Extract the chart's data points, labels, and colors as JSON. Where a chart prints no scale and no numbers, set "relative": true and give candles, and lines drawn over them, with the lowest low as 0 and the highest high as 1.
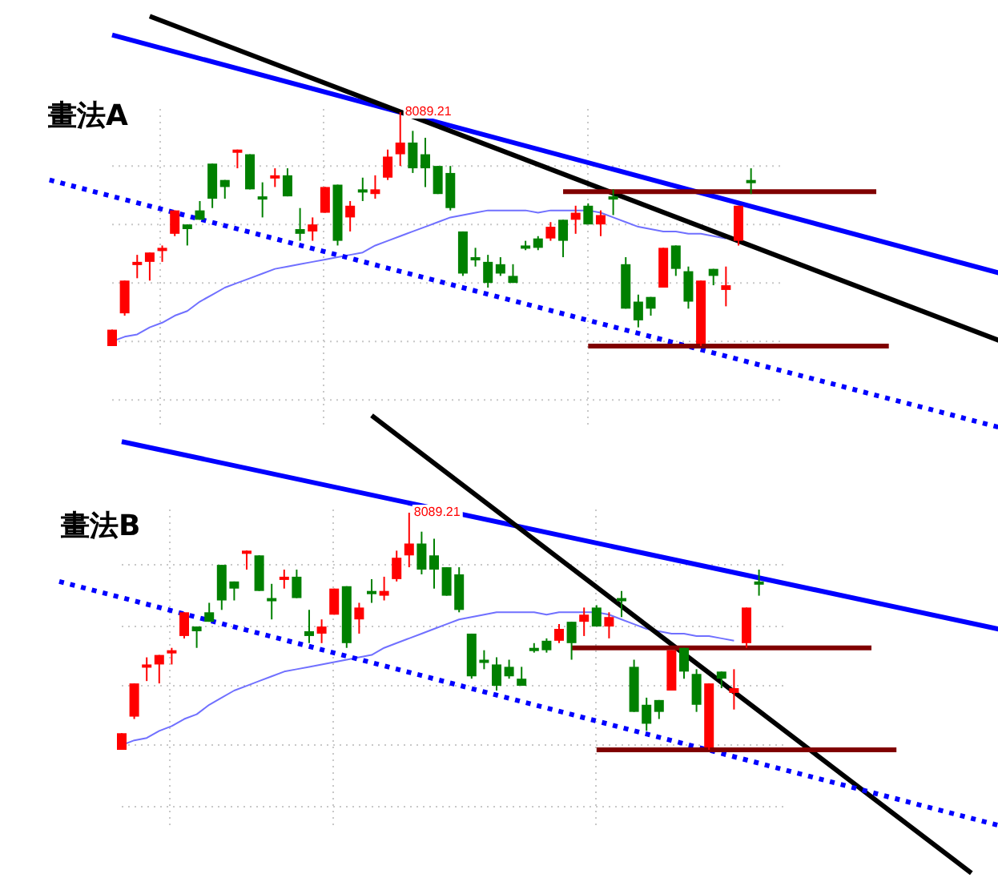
{
  "chart_data": [
    {
      "type": "candlestick",
      "title": "畫法A",
      "relative": true,
      "grid": "x",
      "ref_lines": [
        {
          "axis": "y",
          "value": 0.77,
          "color": "#c8c8c8",
          "line_style": "dotted"
        },
        {
          "axis": "y",
          "value": 0.52,
          "color": "#c8c8c8",
          "line_style": "dotted"
        },
        {
          "axis": "y",
          "value": 0.27,
          "color": "#c8c8c8",
          "line_style": "dotted"
        },
        {
          "axis": "y",
          "value": 0.02,
          "color": "#c8c8c8",
          "line_style": "dotted"
        },
        {
          "axis": "y",
          "value": -0.23,
          "color": "#c8c8c8",
          "line_style": "dotted"
        }
      ],
      "categories": [
        null,
        null,
        null,
        null,
        null,
        null,
        null,
        null,
        null,
        null,
        null,
        null,
        null,
        null,
        null,
        null,
        null,
        null,
        null,
        null,
        null,
        null,
        null,
        null,
        null,
        null,
        null,
        null,
        null,
        null,
        null,
        null,
        null,
        null,
        null,
        null,
        null,
        null,
        null,
        null,
        null,
        null,
        null,
        null,
        null,
        null,
        null,
        null,
        null,
        null,
        null,
        null,
        null,
        null,
        null,
        null,
        null,
        null,
        null,
        null,
        null,
        null,
        null,
        null,
        null,
        null,
        null,
        null,
        null,
        null,
        null,
        null,
        null,
        null,
        null,
        null,
        null
      ],
      "ohlc": [
        null,
        null,
        null,
        null,
        null,
        [
          0,
          0.07,
          0,
          0.07
        ],
        [
          0.14,
          0.28,
          0.13,
          0.28
        ],
        [
          0.35,
          0.39,
          0.29,
          0.36
        ],
        [
          0.36,
          0.4,
          0.28,
          0.4
        ],
        [
          0.41,
          0.43,
          0.36,
          0.42
        ],
        [
          0.48,
          0.58,
          0.47,
          0.58
        ],
        [
          0.52,
          0.52,
          0.43,
          0.5
        ],
        [
          0.58,
          0.62,
          0.54,
          0.54
        ],
        [
          0.78,
          0.78,
          0.59,
          0.63
        ],
        [
          0.71,
          0.71,
          0.63,
          0.68
        ],
        [
          0.83,
          0.84,
          0.76,
          0.84
        ],
        [
          0.82,
          0.82,
          0.67,
          0.67
        ],
        [
          0.64,
          0.7,
          0.55,
          0.63
        ],
        [
          0.72,
          0.76,
          0.68,
          0.73
        ],
        [
          0.73,
          0.76,
          0.64,
          0.64
        ],
        [
          0.5,
          0.59,
          0.45,
          0.48
        ],
        [
          0.49,
          0.55,
          0.45,
          0.52
        ],
        [
          0.57,
          0.68,
          0.57,
          0.68
        ],
        [
          0.69,
          0.69,
          0.43,
          0.45
        ],
        [
          0.55,
          0.62,
          0.49,
          0.6
        ],
        [
          0.67,
          0.72,
          0.62,
          0.66
        ],
        [
          0.65,
          0.73,
          0.63,
          0.67
        ],
        [
          0.72,
          0.84,
          0.71,
          0.81
        ],
        [
          0.82,
          1,
          0.77,
          0.87
        ],
        [
          0.87,
          0.92,
          0.74,
          0.76
        ],
        [
          0.82,
          0.89,
          0.68,
          0.76
        ],
        [
          0.77,
          0.77,
          0.65,
          0.65
        ],
        [
          0.74,
          0.77,
          0.58,
          0.59
        ],
        [
          0.49,
          0.49,
          0.3,
          0.31
        ],
        [
          0.38,
          0.42,
          0.34,
          0.37
        ],
        [
          0.36,
          0.39,
          0.25,
          0.27
        ],
        [
          0.35,
          0.38,
          0.3,
          0.31
        ],
        [
          0.3,
          0.35,
          0.27,
          0.27
        ],
        [
          0.43,
          0.45,
          0.41,
          0.42
        ],
        [
          0.46,
          0.47,
          0.41,
          0.42
        ],
        [
          0.46,
          0.53,
          0.45,
          0.51
        ],
        [
          0.54,
          0.54,
          0.38,
          0.45
        ],
        [
          0.54,
          0.6,
          0.48,
          0.57
        ],
        [
          0.6,
          0.61,
          0.52,
          0.52
        ],
        [
          0.52,
          0.58,
          0.47,
          0.56
        ],
        [
          0.64,
          0.67,
          0.56,
          0.63
        ],
        [
          0.35,
          0.38,
          0.16,
          0.16
        ],
        [
          0.19,
          0.22,
          0.08,
          0.11
        ],
        [
          0.21,
          0.21,
          0.13,
          0.16
        ],
        [
          0.25,
          0.42,
          0.25,
          0.42
        ],
        [
          0.43,
          0.43,
          0.3,
          0.33
        ],
        [
          0.32,
          0.34,
          0.16,
          0.19
        ],
        [
          0.01,
          0.28,
          0,
          0.28
        ],
        [
          0.33,
          0.33,
          0.26,
          0.3
        ],
        [
          0.24,
          0.34,
          0.17,
          0.26
        ],
        [
          0.45,
          0.6,
          0.43,
          0.6
        ],
        [
          0.71,
          0.76,
          0.65,
          0.7
        ],
        null,
        null,
        null,
        null,
        null,
        null,
        null,
        null,
        null,
        null,
        null,
        null,
        null,
        null,
        null,
        null,
        null,
        null,
        null,
        null
      ],
      "colors": [
        null,
        null,
        null,
        null,
        null,
        "#ff0000",
        "#ff0000",
        "#ff0000",
        "#ff0000",
        "#ff0000",
        "#ff0000",
        "#008000",
        "#008000",
        "#008000",
        "#008000",
        "#ff0000",
        "#008000",
        "#008000",
        "#ff0000",
        "#008000",
        "#008000",
        "#ff0000",
        "#ff0000",
        "#008000",
        "#ff0000",
        "#008000",
        "#ff0000",
        "#ff0000",
        "#ff0000",
        "#008000",
        "#008000",
        "#008000",
        "#008000",
        "#008000",
        "#008000",
        "#008000",
        "#008000",
        "#008000",
        "#008000",
        "#008000",
        "#ff0000",
        "#008000",
        "#ff0000",
        "#008000",
        "#ff0000",
        "#008000",
        "#008000",
        "#008000",
        "#008000",
        "#ff0000",
        "#008000",
        "#008000",
        "#ff0000",
        "#008000",
        "#ff0000",
        "#ff0000",
        "#008000",
        null,
        null,
        null,
        null,
        null,
        null,
        null,
        null,
        null,
        null,
        null,
        null,
        null,
        null,
        null,
        null,
        null,
        null,
        null,
        null
      ],
      "series": [
        {
          "type": "line",
          "color": "#7070ff",
          "values": [
            null,
            null,
            null,
            null,
            null,
            0.02,
            0.04,
            0.05,
            0.08,
            0.1,
            0.13,
            0.15,
            0.19,
            0.22,
            0.25,
            0.27,
            0.29,
            0.31,
            0.33,
            0.34,
            0.35,
            0.36,
            0.37,
            0.38,
            0.39,
            0.4,
            0.43,
            0.45,
            0.47,
            0.49,
            0.51,
            0.53,
            0.55,
            0.56,
            0.57,
            0.58,
            0.58,
            0.58,
            0.58,
            0.57,
            0.58,
            0.58,
            0.58,
            0.58,
            0.57,
            0.55,
            0.53,
            0.51,
            0.5,
            0.49,
            0.49,
            0.48,
            0.48,
            0.47,
            0.46,
            null,
            null,
            null,
            null,
            null,
            null,
            null,
            null,
            null,
            null,
            null,
            null,
            null,
            null,
            null,
            null,
            null,
            null,
            null,
            null,
            null,
            null
          ]
        },
        {
          "type": "line",
          "color": "#0000ff",
          "values": [
            null,
            null,
            null,
            null,
            null,
            1.33,
            null,
            null,
            null,
            null,
            null,
            null,
            null,
            null,
            null,
            null,
            null,
            null,
            null,
            null,
            null,
            null,
            null,
            null,
            null,
            null,
            null,
            null,
            null,
            null,
            null,
            null,
            null,
            null,
            null,
            null,
            null,
            null,
            null,
            null,
            null,
            null,
            null,
            null,
            null,
            null,
            null,
            null,
            null,
            null,
            null,
            null,
            null,
            null,
            null,
            null,
            null,
            null,
            null,
            null,
            null,
            null,
            null,
            null,
            null,
            null,
            null,
            null,
            null,
            null,
            null,
            null,
            null,
            null,
            null,
            null,
            0.31
          ]
        },
        {
          "type": "line",
          "color": "#000000",
          "values": [
            null,
            null,
            null,
            null,
            null,
            null,
            null,
            null,
            1.41,
            null,
            null,
            null,
            null,
            null,
            null,
            null,
            null,
            null,
            null,
            null,
            null,
            null,
            null,
            null,
            null,
            null,
            null,
            null,
            null,
            null,
            null,
            null,
            null,
            null,
            null,
            null,
            null,
            null,
            null,
            null,
            null,
            null,
            null,
            null,
            null,
            null,
            null,
            null,
            null,
            null,
            null,
            null,
            null,
            null,
            null,
            null,
            null,
            null,
            null,
            null,
            null,
            null,
            null,
            null,
            null,
            null,
            null,
            null,
            null,
            null,
            null,
            null,
            null,
            null,
            null,
            null,
            0.02
          ]
        },
        {
          "type": "line",
          "color": "#0000ff",
          "line_style": "dotted",
          "values": [
            0.71,
            null,
            null,
            null,
            null,
            null,
            null,
            null,
            null,
            null,
            null,
            null,
            null,
            null,
            null,
            null,
            null,
            null,
            null,
            null,
            null,
            null,
            null,
            null,
            null,
            null,
            null,
            null,
            null,
            null,
            null,
            null,
            null,
            null,
            null,
            null,
            null,
            null,
            null,
            null,
            null,
            null,
            null,
            null,
            null,
            null,
            null,
            null,
            null,
            null,
            null,
            null,
            null,
            null,
            null,
            null,
            null,
            null,
            null,
            null,
            null,
            null,
            null,
            null,
            null,
            null,
            null,
            null,
            null,
            null,
            null,
            null,
            null,
            null,
            null,
            null,
            -0.35
          ]
        },
        {
          "type": "line",
          "color": "#800000",
          "values": [
            null,
            null,
            null,
            null,
            null,
            null,
            null,
            null,
            null,
            null,
            null,
            null,
            null,
            null,
            null,
            null,
            null,
            null,
            null,
            null,
            null,
            null,
            null,
            null,
            null,
            null,
            null,
            null,
            null,
            null,
            null,
            null,
            null,
            null,
            null,
            null,
            null,
            null,
            null,
            null,
            null,
            0.66,
            null,
            null,
            null,
            null,
            null,
            null,
            null,
            null,
            null,
            null,
            null,
            null,
            null,
            null,
            null,
            null,
            null,
            null,
            null,
            null,
            null,
            null,
            null,
            null,
            0.66,
            null,
            null,
            null,
            null,
            null,
            null,
            null,
            null,
            null,
            null
          ]
        },
        {
          "type": "line",
          "color": "#800000",
          "values": [
            null,
            null,
            null,
            null,
            null,
            null,
            null,
            null,
            null,
            null,
            null,
            null,
            null,
            null,
            null,
            null,
            null,
            null,
            null,
            null,
            null,
            null,
            null,
            null,
            null,
            null,
            null,
            null,
            null,
            null,
            null,
            null,
            null,
            null,
            null,
            null,
            null,
            null,
            null,
            null,
            null,
            null,
            null,
            0,
            null,
            null,
            null,
            null,
            null,
            null,
            null,
            null,
            null,
            null,
            null,
            null,
            null,
            null,
            null,
            null,
            null,
            null,
            null,
            null,
            null,
            null,
            null,
            0,
            null,
            null,
            null,
            null,
            null,
            null,
            null,
            null,
            null
          ]
        }
      ],
      "annotations": [
        "8089.21"
      ]
    },
    {
      "type": "candlestick",
      "title": "畫法B",
      "relative": true,
      "grid": "x",
      "ref_lines": [
        {
          "axis": "y",
          "value": 0.78,
          "color": "#c8c8c8",
          "line_style": "dotted"
        },
        {
          "axis": "y",
          "value": 0.52,
          "color": "#c8c8c8",
          "line_style": "dotted"
        },
        {
          "axis": "y",
          "value": 0.27,
          "color": "#c8c8c8",
          "line_style": "dotted"
        },
        {
          "axis": "y",
          "value": 0.02,
          "color": "#c8c8c8",
          "line_style": "dotted"
        },
        {
          "axis": "y",
          "value": -0.24,
          "color": "#c8c8c8",
          "line_style": "dotted"
        }
      ],
      "categories": [
        null,
        null,
        null,
        null,
        null,
        null,
        null,
        null,
        null,
        null,
        null,
        null,
        null,
        null,
        null,
        null,
        null,
        null,
        null,
        null,
        null,
        null,
        null,
        null,
        null,
        null,
        null,
        null,
        null,
        null,
        null,
        null,
        null,
        null,
        null,
        null,
        null,
        null,
        null,
        null,
        null,
        null,
        null,
        null,
        null,
        null,
        null,
        null,
        null,
        null,
        null,
        null,
        null,
        null,
        null,
        null,
        null,
        null,
        null,
        null,
        null,
        null,
        null,
        null,
        null,
        null,
        null,
        null,
        null,
        null,
        null,
        null,
        null,
        null,
        null,
        null,
        null
      ],
      "ohlc": [
        null,
        null,
        null,
        null,
        null,
        [
          0,
          0.07,
          0,
          0.07
        ],
        [
          0.14,
          0.28,
          0.13,
          0.28
        ],
        [
          0.35,
          0.39,
          0.29,
          0.36
        ],
        [
          0.36,
          0.4,
          0.28,
          0.4
        ],
        [
          0.41,
          0.43,
          0.36,
          0.42
        ],
        [
          0.48,
          0.58,
          0.47,
          0.58
        ],
        [
          0.52,
          0.52,
          0.43,
          0.5
        ],
        [
          0.58,
          0.62,
          0.54,
          0.54
        ],
        [
          0.78,
          0.78,
          0.59,
          0.63
        ],
        [
          0.71,
          0.71,
          0.63,
          0.68
        ],
        [
          0.83,
          0.84,
          0.76,
          0.84
        ],
        [
          0.82,
          0.82,
          0.67,
          0.67
        ],
        [
          0.64,
          0.7,
          0.55,
          0.63
        ],
        [
          0.72,
          0.76,
          0.68,
          0.73
        ],
        [
          0.73,
          0.76,
          0.64,
          0.64
        ],
        [
          0.5,
          0.59,
          0.45,
          0.48
        ],
        [
          0.49,
          0.55,
          0.45,
          0.52
        ],
        [
          0.57,
          0.68,
          0.57,
          0.68
        ],
        [
          0.69,
          0.69,
          0.43,
          0.45
        ],
        [
          0.55,
          0.62,
          0.49,
          0.6
        ],
        [
          0.67,
          0.72,
          0.62,
          0.66
        ],
        [
          0.65,
          0.73,
          0.63,
          0.67
        ],
        [
          0.72,
          0.84,
          0.71,
          0.81
        ],
        [
          0.82,
          1,
          0.77,
          0.87
        ],
        [
          0.87,
          0.92,
          0.74,
          0.76
        ],
        [
          0.82,
          0.89,
          0.68,
          0.76
        ],
        [
          0.77,
          0.77,
          0.65,
          0.65
        ],
        [
          0.74,
          0.77,
          0.58,
          0.59
        ],
        [
          0.49,
          0.49,
          0.3,
          0.31
        ],
        [
          0.38,
          0.42,
          0.34,
          0.37
        ],
        [
          0.36,
          0.39,
          0.25,
          0.27
        ],
        [
          0.35,
          0.38,
          0.3,
          0.31
        ],
        [
          0.3,
          0.35,
          0.27,
          0.27
        ],
        [
          0.43,
          0.45,
          0.41,
          0.42
        ],
        [
          0.46,
          0.47,
          0.41,
          0.42
        ],
        [
          0.46,
          0.53,
          0.45,
          0.51
        ],
        [
          0.54,
          0.54,
          0.38,
          0.45
        ],
        [
          0.54,
          0.6,
          0.48,
          0.57
        ],
        [
          0.6,
          0.61,
          0.52,
          0.52
        ],
        [
          0.52,
          0.58,
          0.47,
          0.56
        ],
        [
          0.64,
          0.67,
          0.56,
          0.63
        ],
        [
          0.35,
          0.38,
          0.16,
          0.16
        ],
        [
          0.19,
          0.22,
          0.08,
          0.11
        ],
        [
          0.21,
          0.21,
          0.13,
          0.16
        ],
        [
          0.25,
          0.42,
          0.25,
          0.42
        ],
        [
          0.43,
          0.43,
          0.3,
          0.33
        ],
        [
          0.32,
          0.34,
          0.16,
          0.19
        ],
        [
          0.01,
          0.28,
          0,
          0.28
        ],
        [
          0.33,
          0.33,
          0.26,
          0.3
        ],
        [
          0.24,
          0.34,
          0.17,
          0.26
        ],
        [
          0.45,
          0.6,
          0.43,
          0.6
        ],
        [
          0.71,
          0.76,
          0.65,
          0.7
        ],
        null,
        null,
        null,
        null,
        null,
        null,
        null,
        null,
        null,
        null,
        null,
        null,
        null,
        null,
        null,
        null,
        null,
        null,
        null,
        null
      ],
      "colors": [
        null,
        null,
        null,
        null,
        null,
        "#ff0000",
        "#ff0000",
        "#ff0000",
        "#ff0000",
        "#ff0000",
        "#ff0000",
        "#008000",
        "#008000",
        "#008000",
        "#008000",
        "#ff0000",
        "#008000",
        "#008000",
        "#ff0000",
        "#008000",
        "#008000",
        "#ff0000",
        "#ff0000",
        "#008000",
        "#ff0000",
        "#008000",
        "#ff0000",
        "#ff0000",
        "#ff0000",
        "#008000",
        "#008000",
        "#008000",
        "#008000",
        "#008000",
        "#008000",
        "#008000",
        "#008000",
        "#008000",
        "#008000",
        "#008000",
        "#ff0000",
        "#008000",
        "#ff0000",
        "#008000",
        "#ff0000",
        "#008000",
        "#008000",
        "#008000",
        "#008000",
        "#ff0000",
        "#008000",
        "#008000",
        "#ff0000",
        "#008000",
        "#ff0000",
        "#ff0000",
        "#008000",
        null,
        null,
        null,
        null,
        null,
        null,
        null,
        null,
        null,
        null,
        null,
        null,
        null,
        null,
        null,
        null,
        null,
        null,
        null,
        null
      ],
      "series": [
        {
          "type": "line",
          "color": "#7070ff",
          "values": [
            null,
            null,
            null,
            null,
            null,
            0.02,
            0.04,
            0.05,
            0.08,
            0.1,
            0.13,
            0.15,
            0.19,
            0.22,
            0.25,
            0.27,
            0.29,
            0.31,
            0.33,
            0.34,
            0.35,
            0.36,
            0.37,
            0.38,
            0.39,
            0.4,
            0.43,
            0.45,
            0.47,
            0.49,
            0.51,
            0.53,
            0.55,
            0.56,
            0.57,
            0.58,
            0.58,
            0.58,
            0.58,
            0.57,
            0.58,
            0.58,
            0.58,
            0.58,
            0.57,
            0.55,
            0.53,
            0.51,
            0.5,
            0.49,
            0.49,
            0.48,
            0.48,
            0.47,
            0.46,
            null,
            null,
            null,
            null,
            null,
            null,
            null,
            null,
            null,
            null,
            null,
            null,
            null,
            null,
            null,
            null,
            null,
            null,
            null,
            null,
            null,
            null
          ]
        },
        {
          "type": "line",
          "color": "#0000ff",
          "values": [
            null,
            null,
            null,
            null,
            null,
            1.3,
            null,
            null,
            null,
            null,
            null,
            null,
            null,
            null,
            null,
            null,
            null,
            null,
            null,
            null,
            null,
            null,
            null,
            null,
            null,
            null,
            null,
            null,
            null,
            null,
            null,
            null,
            null,
            null,
            null,
            null,
            null,
            null,
            null,
            null,
            null,
            null,
            null,
            null,
            null,
            null,
            null,
            null,
            null,
            null,
            null,
            null,
            null,
            null,
            null,
            null,
            null,
            null,
            null,
            null,
            null,
            null,
            null,
            null,
            null,
            null,
            null,
            null,
            null,
            null,
            null,
            null,
            null,
            null,
            null,
            null,
            0.5
          ]
        },
        {
          "type": "line",
          "color": "#000000",
          "values": [
            null,
            null,
            null,
            null,
            null,
            null,
            null,
            null,
            null,
            null,
            null,
            null,
            null,
            null,
            null,
            null,
            null,
            null,
            null,
            null,
            null,
            null,
            null,
            null,
            null,
            1.41,
            null,
            null,
            null,
            null,
            null,
            null,
            null,
            null,
            null,
            null,
            null,
            null,
            null,
            null,
            null,
            null,
            null,
            null,
            null,
            null,
            null,
            null,
            null,
            null,
            null,
            null,
            null,
            null,
            null,
            null,
            null,
            null,
            null,
            null,
            null,
            null,
            null,
            null,
            null,
            null,
            null,
            null,
            null,
            null,
            null,
            null,
            null,
            -0.52,
            null,
            null,
            null
          ]
        },
        {
          "type": "line",
          "color": "#0000ff",
          "line_style": "dotted",
          "values": [
            0.71,
            null,
            null,
            null,
            null,
            null,
            null,
            null,
            null,
            null,
            null,
            null,
            null,
            null,
            null,
            null,
            null,
            null,
            null,
            null,
            null,
            null,
            null,
            null,
            null,
            null,
            null,
            null,
            null,
            null,
            null,
            null,
            null,
            null,
            null,
            null,
            null,
            null,
            null,
            null,
            null,
            null,
            null,
            null,
            null,
            null,
            null,
            null,
            null,
            null,
            null,
            null,
            null,
            null,
            null,
            null,
            null,
            null,
            null,
            null,
            null,
            null,
            null,
            null,
            null,
            null,
            null,
            null,
            null,
            null,
            null,
            null,
            null,
            null,
            null,
            null,
            -0.33
          ]
        },
        {
          "type": "line",
          "color": "#800000",
          "values": [
            null,
            null,
            null,
            null,
            null,
            null,
            null,
            null,
            null,
            null,
            null,
            null,
            null,
            null,
            null,
            null,
            null,
            null,
            null,
            null,
            null,
            null,
            null,
            null,
            null,
            null,
            null,
            null,
            null,
            null,
            null,
            null,
            null,
            null,
            null,
            null,
            null,
            null,
            null,
            null,
            null,
            0.43,
            null,
            null,
            null,
            null,
            null,
            null,
            null,
            null,
            null,
            null,
            null,
            null,
            null,
            null,
            null,
            null,
            null,
            null,
            null,
            null,
            null,
            null,
            null,
            0.43,
            null,
            null,
            null,
            null,
            null,
            null,
            null,
            null,
            null,
            null,
            null
          ]
        },
        {
          "type": "line",
          "color": "#800000",
          "values": [
            null,
            null,
            null,
            null,
            null,
            null,
            null,
            null,
            null,
            null,
            null,
            null,
            null,
            null,
            null,
            null,
            null,
            null,
            null,
            null,
            null,
            null,
            null,
            null,
            null,
            null,
            null,
            null,
            null,
            null,
            null,
            null,
            null,
            null,
            null,
            null,
            null,
            null,
            null,
            null,
            null,
            null,
            null,
            0,
            null,
            null,
            null,
            null,
            null,
            null,
            null,
            null,
            null,
            null,
            null,
            null,
            null,
            null,
            null,
            null,
            null,
            null,
            null,
            null,
            null,
            null,
            null,
            0,
            null,
            null,
            null,
            null,
            null,
            null,
            null,
            null,
            null
          ]
        }
      ],
      "annotations": [
        "8089.21"
      ]
    }
  ]
}
